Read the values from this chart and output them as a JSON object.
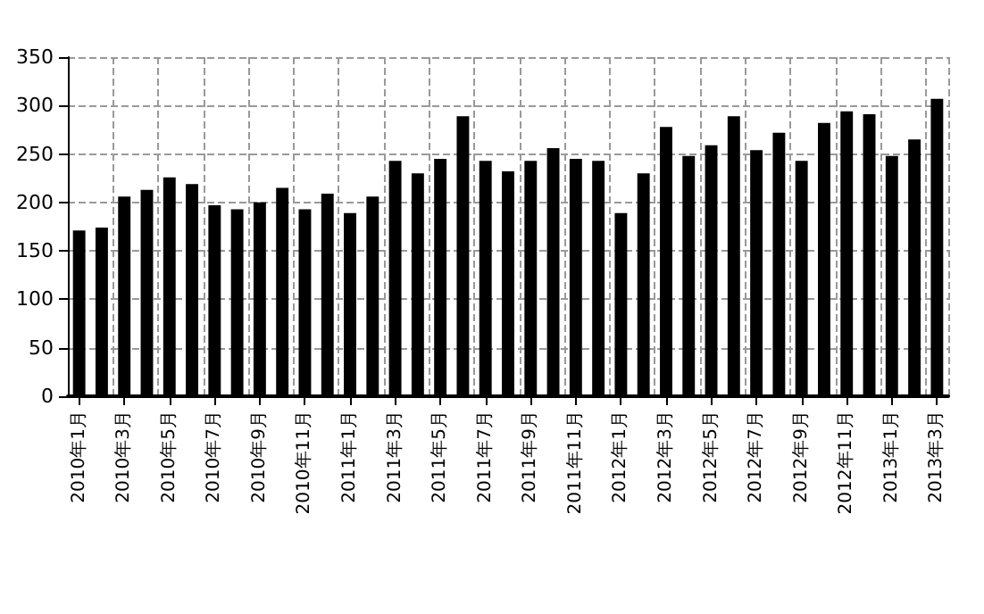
{
  "chart_data": {
    "type": "bar",
    "categories": [
      "2010年1月",
      null,
      "2010年3月",
      null,
      "2010年5月",
      null,
      "2010年7月",
      null,
      "2010年9月",
      null,
      "2010年11月",
      null,
      "2011年1月",
      null,
      "2011年3月",
      null,
      "2011年5月",
      null,
      "2011年7月",
      null,
      "2011年9月",
      null,
      "2011年11月",
      null,
      "2012年1月",
      null,
      "2012年3月",
      null,
      "2012年5月",
      null,
      "2012年7月",
      null,
      "2012年9月",
      null,
      "2012年11月",
      null,
      "2013年1月",
      null,
      "2013年3月"
    ],
    "values": [
      171,
      174,
      206,
      213,
      226,
      219,
      197,
      193,
      200,
      215,
      193,
      209,
      189,
      206,
      243,
      230,
      245,
      289,
      243,
      232,
      243,
      256,
      245,
      243,
      189,
      230,
      278,
      248,
      259,
      289,
      254,
      272,
      243,
      282,
      294,
      291,
      248,
      265,
      307
    ],
    "color": "#000000",
    "ylim": [
      0,
      350
    ],
    "yticks": [
      0,
      50,
      100,
      150,
      200,
      250,
      300,
      350
    ],
    "grid": true
  }
}
